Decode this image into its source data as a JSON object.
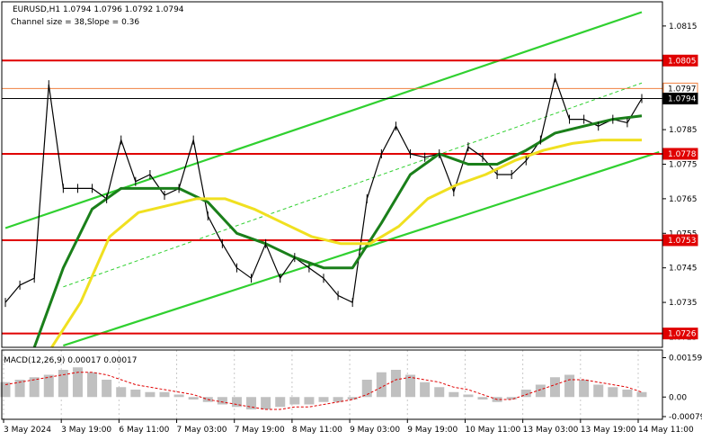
{
  "chart_data": [
    {
      "type": "candlestick",
      "symbol_line": "EURUSD,H1  1.0794 1.0796 1.0792 1.0794",
      "channel_info": "Channel size = 38,Slope = 0.36",
      "ylim": [
        1.0722,
        1.0822
      ],
      "y_ticks": [
        {
          "value": 1.0815,
          "label": "1.0815"
        },
        {
          "value": 1.0805,
          "label": "1.0805"
        },
        {
          "value": 1.0785,
          "label": "1.0785"
        },
        {
          "value": 1.0775,
          "label": "1.0775"
        },
        {
          "value": 1.0765,
          "label": "1.0765"
        },
        {
          "value": 1.0755,
          "label": "1.0755"
        },
        {
          "value": 1.0745,
          "label": "1.0745"
        },
        {
          "value": 1.0735,
          "label": "1.0735"
        },
        {
          "value": 1.0725,
          "label": "1.0725"
        }
      ],
      "levels": [
        {
          "value": 1.0805,
          "label": "1.0805",
          "color": "#e00000"
        },
        {
          "value": 1.0778,
          "label": "1.0778",
          "color": "#e00000"
        },
        {
          "value": 1.0753,
          "label": "1.0753",
          "color": "#e00000"
        },
        {
          "value": 1.0726,
          "label": "1.0726",
          "color": "#e00000"
        },
        {
          "value": 1.07969,
          "label": "1.0797",
          "color": "#f08040"
        },
        {
          "value": 1.0794,
          "label": "1.0794",
          "color": "#000000"
        }
      ],
      "x_labels": [
        "3 May 2024",
        "3 May 19:00",
        "6 May 11:00",
        "7 May 03:00",
        "7 May 19:00",
        "8 May 11:00",
        "9 May 03:00",
        "9 May 19:00",
        "10 May 11:00",
        "13 May 03:00",
        "13 May 19:00",
        "14 May 11:00"
      ],
      "series": [
        {
          "name": "price",
          "color": "#000000",
          "x": [
            0,
            0.25,
            0.5,
            0.75,
            1.0,
            1.25,
            1.5,
            1.75,
            2.0,
            2.25,
            2.5,
            2.75,
            3.0,
            3.25,
            3.5,
            3.75,
            4.0,
            4.25,
            4.5,
            4.75,
            5.0,
            5.25,
            5.5,
            5.75,
            6.0,
            6.25,
            6.5,
            6.75,
            7.0,
            7.25,
            7.5,
            7.75,
            8.0,
            8.25,
            8.5,
            8.75,
            9.0,
            9.25,
            9.5,
            9.75,
            10.0,
            10.25,
            10.5,
            10.75,
            11.0
          ],
          "y": [
            1.0735,
            1.074,
            1.0742,
            1.0798,
            1.0768,
            1.0768,
            1.0768,
            1.0765,
            1.0782,
            1.077,
            1.0772,
            1.0766,
            1.0768,
            1.0782,
            1.076,
            1.0752,
            1.0745,
            1.0742,
            1.0752,
            1.0742,
            1.0748,
            1.0745,
            1.0742,
            1.0737,
            1.0735,
            1.0765,
            1.0778,
            1.0786,
            1.0778,
            1.0777,
            1.0778,
            1.0767,
            1.078,
            1.0777,
            1.0772,
            1.0772,
            1.0776,
            1.0782,
            1.08,
            1.0788,
            1.0788,
            1.0786,
            1.0788,
            1.0787,
            1.0794
          ]
        },
        {
          "name": "ma_fast",
          "color": "#1a7f1a",
          "x": [
            0.5,
            1.0,
            1.5,
            2.0,
            2.5,
            3.0,
            3.5,
            4.0,
            4.5,
            5.0,
            5.5,
            6.0,
            6.5,
            7.0,
            7.5,
            8.0,
            8.5,
            9.0,
            9.5,
            10.0,
            10.5,
            11.0
          ],
          "y": [
            1.0722,
            1.0745,
            1.0762,
            1.0768,
            1.0768,
            1.0768,
            1.0764,
            1.0755,
            1.0752,
            1.0748,
            1.0745,
            1.0745,
            1.0758,
            1.0772,
            1.0778,
            1.0775,
            1.0775,
            1.0779,
            1.0784,
            1.0786,
            1.0788,
            1.0789
          ]
        },
        {
          "name": "ma_slow",
          "color": "#f0e020",
          "x": [
            0.8,
            1.3,
            1.8,
            2.3,
            2.8,
            3.3,
            3.8,
            4.3,
            4.8,
            5.3,
            5.8,
            6.3,
            6.8,
            7.3,
            7.8,
            8.3,
            8.8,
            9.3,
            9.8,
            10.3,
            11.0
          ],
          "y": [
            1.0722,
            1.0735,
            1.0754,
            1.0761,
            1.0763,
            1.0765,
            1.0765,
            1.0762,
            1.0758,
            1.0754,
            1.0752,
            1.0752,
            1.0757,
            1.0765,
            1.0769,
            1.0772,
            1.0776,
            1.0779,
            1.0781,
            1.0782,
            1.0782
          ]
        }
      ],
      "channel_color": "#30d030",
      "macd": {
        "label": "MACD(12,26,9) 0.00017 0.00017",
        "ylim": [
          -0.0009,
          0.0019
        ],
        "y_ticks": [
          {
            "value": 0.00159,
            "label": "0.00159"
          },
          {
            "value": 0.0,
            "label": "0.00"
          },
          {
            "value": -0.00079,
            "label": "-0.00079"
          }
        ],
        "histogram_color": "#c0c0c0",
        "signal_color": "#e00000",
        "x": [
          0,
          0.25,
          0.5,
          0.75,
          1.0,
          1.25,
          1.5,
          1.75,
          2.0,
          2.25,
          2.5,
          2.75,
          3.0,
          3.25,
          3.5,
          3.75,
          4.0,
          4.25,
          4.5,
          4.75,
          5.0,
          5.25,
          5.5,
          5.75,
          6.0,
          6.25,
          6.5,
          6.75,
          7.0,
          7.25,
          7.5,
          7.75,
          8.0,
          8.25,
          8.5,
          8.75,
          9.0,
          9.25,
          9.5,
          9.75,
          10.0,
          10.25,
          10.5,
          10.75,
          11.0
        ],
        "histogram": [
          0.0006,
          0.0007,
          0.0008,
          0.0009,
          0.0011,
          0.0012,
          0.001,
          0.0007,
          0.0004,
          0.0003,
          0.0002,
          0.0002,
          0.0001,
          -0.0001,
          -0.0002,
          -0.0003,
          -0.0004,
          -0.0005,
          -0.0005,
          -0.0004,
          -0.0003,
          -0.0003,
          -0.0002,
          -0.0002,
          -0.0001,
          0.0007,
          0.001,
          0.0011,
          0.0009,
          0.0006,
          0.0004,
          0.0002,
          0.0001,
          -0.0001,
          -0.0002,
          -0.0001,
          0.0003,
          0.0005,
          0.0008,
          0.0009,
          0.0007,
          0.0005,
          0.0004,
          0.0003,
          0.0002
        ],
        "signal": [
          0.0005,
          0.0006,
          0.0007,
          0.0008,
          0.0009,
          0.001,
          0.001,
          0.0009,
          0.0007,
          0.0005,
          0.0004,
          0.0003,
          0.0002,
          0.0001,
          -0.0001,
          -0.0002,
          -0.0003,
          -0.0004,
          -0.0005,
          -0.0005,
          -0.0004,
          -0.0004,
          -0.0003,
          -0.0002,
          -0.0001,
          0.0001,
          0.0004,
          0.0007,
          0.0008,
          0.0007,
          0.0006,
          0.0004,
          0.0003,
          0.0001,
          -0.0001,
          -0.0001,
          0.0001,
          0.0003,
          0.0005,
          0.0007,
          0.0007,
          0.0006,
          0.0005,
          0.0004,
          0.0002
        ]
      }
    }
  ]
}
